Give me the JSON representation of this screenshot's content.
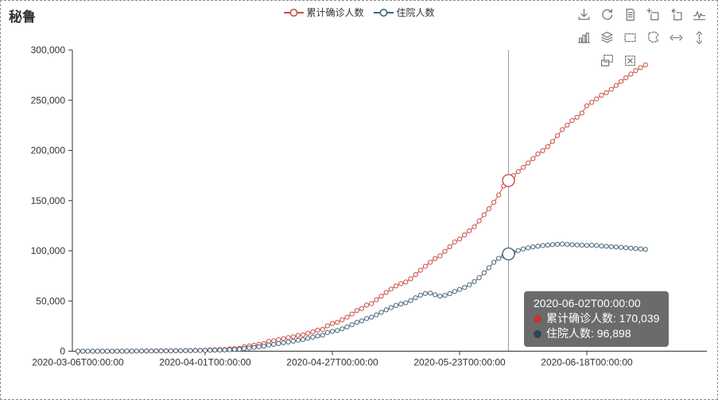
{
  "header": {
    "title": "秘鲁"
  },
  "legend": {
    "items": [
      {
        "label": "累计确诊人数",
        "color": "#ca4e47"
      },
      {
        "label": "住院人数",
        "color": "#486579"
      }
    ]
  },
  "toolbox": {
    "icons": [
      "save-as-image",
      "restore",
      "data-view",
      "data-zoom",
      "data-zoom-back",
      "magic-type-line",
      "magic-type-bar",
      "magic-type-stack",
      "brush-rect",
      "brush-polygon",
      "brush-line-x",
      "brush-line-y",
      "brush-keep",
      "brush-clear"
    ]
  },
  "tooltip": {
    "title": "2020-06-02T00:00:00",
    "rows": [
      {
        "label": "累计确诊人数",
        "value": "170,039",
        "text": "累计确诊人数: 170,039",
        "color": "#c23531"
      },
      {
        "label": "住院人数",
        "value": "96,898",
        "text": "住院人数: 96,898",
        "color": "#2f4554"
      }
    ]
  },
  "chart_data": {
    "type": "line",
    "title": "秘鲁",
    "xlabel": "",
    "ylabel": "",
    "x_start": "2020-03-06",
    "x_interval_days": 1,
    "ylim": [
      0,
      300000
    ],
    "yticks": [
      0,
      50000,
      100000,
      150000,
      200000,
      250000,
      300000
    ],
    "ytick_labels": [
      "0",
      "50,000",
      "100,000",
      "150,000",
      "200,000",
      "250,000",
      "300,000"
    ],
    "xtick_indices": [
      0,
      26,
      52,
      78,
      104
    ],
    "xtick_labels": [
      "2020-03-06T00:00:00",
      "2020-04-01T00:00:00",
      "2020-04-27T00:00:00",
      "2020-05-23T00:00:00",
      "2020-06-18T00:00:00"
    ],
    "grid": false,
    "legend_position": "top-center",
    "highlight": {
      "index": 88,
      "date": "2020-06-02T00:00:00",
      "values": [
        170039,
        96898
      ]
    },
    "series": [
      {
        "name": "累计确诊人数",
        "color": "#ca4e47",
        "values": [
          1,
          1,
          1,
          6,
          9,
          11,
          15,
          28,
          38,
          43,
          86,
          117,
          145,
          234,
          234,
          263,
          318,
          363,
          395,
          416,
          480,
          580,
          635,
          671,
          852,
          950,
          1065,
          1323,
          1414,
          1595,
          1746,
          2281,
          2561,
          2954,
          4342,
          5256,
          5897,
          6848,
          7519,
          9784,
          10303,
          11475,
          12491,
          13489,
          14420,
          15628,
          16325,
          17837,
          19250,
          20914,
          21648,
          25331,
          27517,
          28699,
          31190,
          33931,
          36976,
          40459,
          42534,
          45928,
          47372,
          51189,
          54817,
          58526,
          61847,
          65015,
          67307,
          68822,
          72059,
          76306,
          80604,
          84495,
          88541,
          92273,
          94933,
          99483,
          104020,
          108769,
          111698,
          115754,
          119959,
          123979,
          129751,
          135905,
          141779,
          148285,
          155671,
          164476,
          170039,
          174884,
          178914,
          183198,
          187400,
          191758,
          196515,
          199696,
          203736,
          208823,
          214788,
          220749,
          225132,
          229736,
          232992,
          237156,
          244388,
          247925,
          251338,
          254936,
          257447,
          260810,
          264689,
          268602,
          272364,
          275989,
          279419,
          282365,
          285213
        ]
      },
      {
        "name": "住院人数",
        "color": "#486579",
        "values": [
          0,
          0,
          0,
          2,
          4,
          6,
          9,
          15,
          22,
          28,
          45,
          70,
          95,
          140,
          160,
          190,
          230,
          270,
          300,
          330,
          380,
          450,
          500,
          540,
          640,
          700,
          780,
          900,
          990,
          1100,
          1250,
          1500,
          1700,
          2000,
          2600,
          3200,
          3700,
          4400,
          5000,
          6200,
          6800,
          7600,
          8400,
          9200,
          10000,
          10900,
          11600,
          12800,
          13900,
          15200,
          16000,
          18500,
          19800,
          20600,
          22300,
          24200,
          26300,
          28700,
          30200,
          32500,
          33800,
          36200,
          38700,
          41200,
          43400,
          45500,
          47000,
          48200,
          50400,
          53200,
          55800,
          57500,
          57900,
          56200,
          54800,
          55600,
          57300,
          59500,
          61500,
          63500,
          66200,
          69300,
          73200,
          78000,
          83100,
          88500,
          92500,
          94800,
          96898,
          98500,
          100200,
          101800,
          102900,
          103800,
          104600,
          105200,
          105700,
          106200,
          106500,
          106700,
          106400,
          106100,
          105800,
          105600,
          105300,
          105600,
          105200,
          104800,
          104500,
          104100,
          103800,
          103400,
          103000,
          102600,
          102200,
          101800,
          101400
        ]
      }
    ]
  }
}
